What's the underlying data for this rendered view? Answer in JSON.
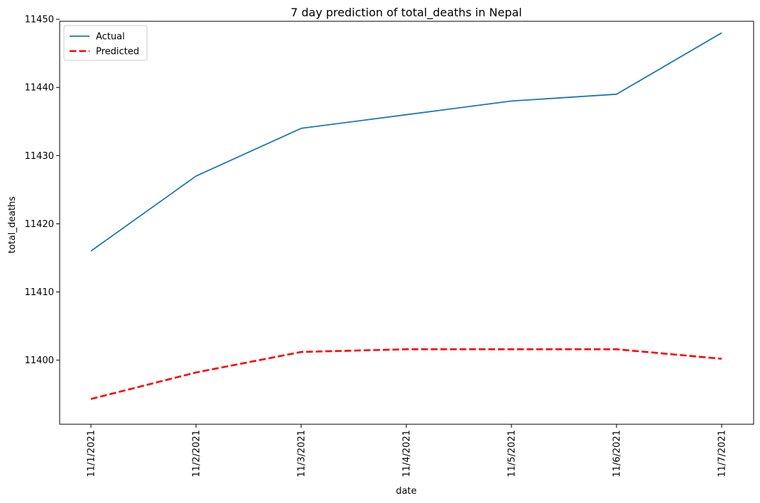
{
  "chart_data": {
    "type": "line",
    "title": "7 day prediction of total_deaths in Nepal",
    "xlabel": "date",
    "ylabel": "total_deaths",
    "categories": [
      "11/1/2021",
      "11/2/2021",
      "11/3/2021",
      "11/4/2021",
      "11/5/2021",
      "11/6/2021",
      "11/7/2021"
    ],
    "series": [
      {
        "name": "Actual",
        "color": "#1f77b4",
        "style": "solid",
        "values": [
          11416,
          11427,
          11434,
          11436,
          11438,
          11439,
          11448
        ]
      },
      {
        "name": "Predicted",
        "color": "#ff0000",
        "style": "dashed",
        "values": [
          11394.3,
          11398.2,
          11401.2,
          11401.6,
          11401.6,
          11401.6,
          11400.2
        ]
      }
    ],
    "ylim": [
      11390.6,
      11449.7
    ],
    "yticks": [
      11400,
      11410,
      11420,
      11430,
      11440,
      11450
    ],
    "grid": false,
    "legend_position": "top-left"
  }
}
